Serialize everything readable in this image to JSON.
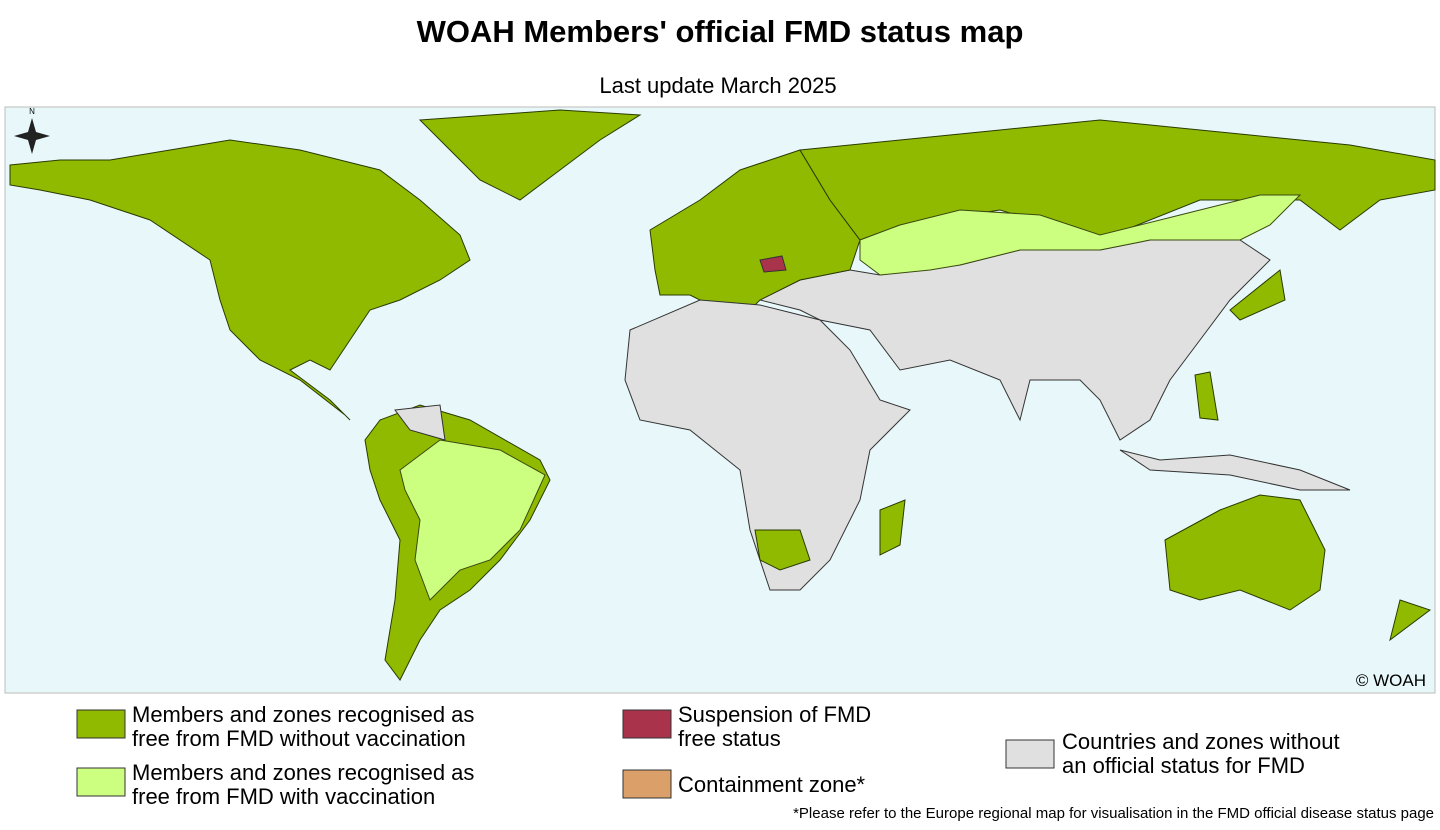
{
  "header": {
    "title": "WOAH Members' official FMD status map",
    "subtitle": "Last update March 2025"
  },
  "map": {
    "credit": "© WOAH",
    "compass": "N"
  },
  "legend": {
    "items": [
      {
        "lines": [
          "Members and zones recognised as",
          "free from FMD without vaccination"
        ]
      },
      {
        "lines": [
          "Members and zones recognised as",
          "free from FMD with vaccination"
        ]
      },
      {
        "lines": [
          "Suspension of FMD",
          "free status"
        ]
      },
      {
        "lines": [
          "Containment zone*"
        ]
      },
      {
        "lines": [
          "Countries and zones without",
          "an official status for FMD"
        ]
      }
    ]
  },
  "footnote": "*Please refer to the Europe regional map for visualisation in the FMD official disease status page"
}
